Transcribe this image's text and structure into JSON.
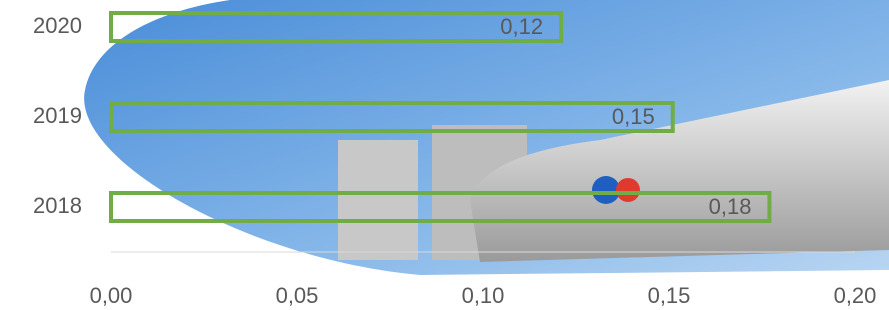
{
  "chart_data": {
    "type": "bar",
    "orientation": "horizontal",
    "categories": [
      "2018",
      "2019",
      "2020"
    ],
    "values": [
      0.177,
      0.151,
      0.121
    ],
    "value_labels": [
      "0,18",
      "0,15",
      "0,12"
    ],
    "color": "#70ad47",
    "xlim": [
      0,
      0.2
    ],
    "xticks": [
      {
        "value": 0,
        "label": "0,00"
      },
      {
        "value": 0.05,
        "label": "0,05"
      },
      {
        "value": 0.1,
        "label": "0,10"
      },
      {
        "value": 0.15,
        "label": "0,15"
      },
      {
        "value": 0.2,
        "label": "0,20"
      }
    ],
    "grid": false
  }
}
